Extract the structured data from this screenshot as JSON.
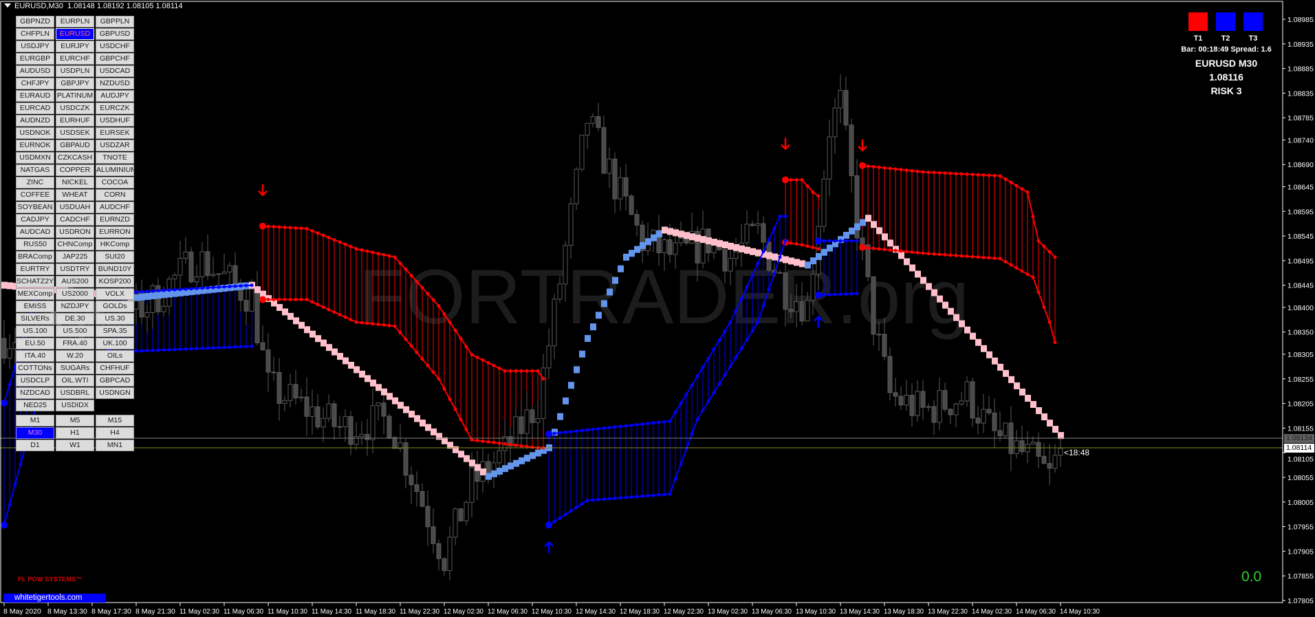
{
  "header": {
    "symbol_tf": "EURUSD,M30",
    "ohlc": "1.08148 1.08192 1.08105 1.08114"
  },
  "symbols": {
    "selected": "EURUSD",
    "rows": [
      [
        "GBPNZD",
        "EURPLN",
        "GBPPLN"
      ],
      [
        "CHFPLN",
        "EURUSD",
        "GBPUSD"
      ],
      [
        "USDJPY",
        "EURJPY",
        "USDCHF"
      ],
      [
        "EURGBP",
        "EURCHF",
        "GBPCHF"
      ],
      [
        "AUDUSD",
        "USDPLN",
        "USDCAD"
      ],
      [
        "CHFJPY",
        "GBPJPY",
        "NZDUSD"
      ],
      [
        "EURAUD",
        "PLATINUM",
        "AUDJPY"
      ],
      [
        "EURCAD",
        "USDCZK",
        "EURCZK"
      ],
      [
        "AUDNZD",
        "EURHUF",
        "USDHUF"
      ],
      [
        "USDNOK",
        "USDSEK",
        "EURSEK"
      ],
      [
        "EURNOK",
        "GBPAUD",
        "USDZAR"
      ],
      [
        "USDMXN",
        "CZKCASH",
        "TNOTE"
      ],
      [
        "NATGAS",
        "COPPER",
        "ALUMINIUM"
      ],
      [
        "ZINC",
        "NICKEL",
        "COCOA"
      ],
      [
        "COFFEE",
        "WHEAT",
        "CORN"
      ],
      [
        "SOYBEAN",
        "USDUAH",
        "AUDCHF"
      ],
      [
        "CADJPY",
        "CADCHF",
        "EURNZD"
      ],
      [
        "AUDCAD",
        "USDRON",
        "EURRON"
      ],
      [
        "RUS50",
        "CHNComp",
        "HKComp"
      ],
      [
        "BRAComp",
        "JAP225",
        "SUI20"
      ],
      [
        "EURTRY",
        "USDTRY",
        "BUND10Y"
      ],
      [
        "SCHATZ2Y",
        "AUS200",
        "KOSP200"
      ],
      [
        "MEXComp",
        "US2000",
        "VOLX"
      ],
      [
        "EMISS",
        "NZDJPY",
        "GOLDs"
      ],
      [
        "SILVERs",
        "DE.30",
        "US.30"
      ],
      [
        "US.100",
        "US.500",
        "SPA.35"
      ],
      [
        "EU.50",
        "FRA.40",
        "UK.100"
      ],
      [
        "ITA.40",
        "W.20",
        "OILs"
      ],
      [
        "COTTONs",
        "SUGARs",
        "CHFHUF"
      ],
      [
        "USDCLP",
        "OIL.WTI",
        "GBPCAD"
      ],
      [
        "NZDCAD",
        "USDBRL",
        "USDNGN"
      ],
      [
        "NED25",
        "USDIDX"
      ]
    ]
  },
  "timeframes": {
    "selected": "M30",
    "rows": [
      [
        "M1",
        "M5",
        "M15"
      ],
      [
        "M30",
        "H1",
        "H4"
      ],
      [
        "D1",
        "W1",
        "MN1"
      ]
    ]
  },
  "panel": {
    "squares": [
      {
        "label": "T1",
        "color": "#ff0000"
      },
      {
        "label": "T2",
        "color": "#0000ff"
      },
      {
        "label": "T3",
        "color": "#0000ff"
      }
    ],
    "bar_spread": "Bar: 00:18:49 Spread: 1.6",
    "symbol_tf": "EURUSD M30",
    "price": "1.08116",
    "risk": "RISK 3"
  },
  "watermark": "FORTRADER.org",
  "brand": "FL POW SYSTEMS™",
  "site_label": "whitetigertools.com",
  "counter": "0.0",
  "bar_timer": "<18:48",
  "price_lines": {
    "bid": "1.08134",
    "last": "1.08114"
  },
  "chart_data": {
    "type": "candlestick",
    "y_ticks": [
      "1.08985",
      "1.08935",
      "1.08885",
      "1.08835",
      "1.08785",
      "1.08740",
      "1.08690",
      "1.08645",
      "1.08595",
      "1.08545",
      "1.08495",
      "1.08445",
      "1.08400",
      "1.08350",
      "1.08305",
      "1.08255",
      "1.08205",
      "1.08155",
      "1.08105",
      "1.08055",
      "1.08005",
      "1.07955",
      "1.07905",
      "1.07855",
      "1.07805"
    ],
    "x_ticks": [
      "8 May 2020",
      "8 May 13:30",
      "8 May 17:30",
      "8 May 21:30",
      "11 May 02:30",
      "11 May 06:30",
      "11 May 10:30",
      "11 May 14:30",
      "11 May 18:30",
      "11 May 22:30",
      "12 May 02:30",
      "12 May 06:30",
      "12 May 10:30",
      "12 May 14:30",
      "12 May 18:30",
      "12 May 22:30",
      "13 May 02:30",
      "13 May 06:30",
      "13 May 10:30",
      "13 May 14:30",
      "13 May 18:30",
      "13 May 22:30",
      "14 May 02:30",
      "14 May 06:30",
      "14 May 10:30"
    ],
    "price_path": [
      [
        "8 May 09:30",
        1.08337
      ],
      [
        "8 May 22:30",
        1.08403
      ],
      [
        "11 May 04:00",
        1.08502
      ],
      [
        "11 May 09:00",
        1.0842
      ],
      [
        "11 May 10:30",
        1.08238
      ],
      [
        "11 May 17:00",
        1.08156
      ],
      [
        "11 May 21:30",
        1.08173
      ],
      [
        "12 May 02:30",
        1.07892
      ],
      [
        "12 May 05:00",
        1.08041
      ],
      [
        "12 May 08:00",
        1.08107
      ],
      [
        "12 May 11:00",
        1.08206
      ],
      [
        "12 May 12:30",
        1.08387
      ],
      [
        "12 May 15:30",
        1.08782
      ],
      [
        "12 May 18:00",
        1.0865
      ],
      [
        "12 May 20:30",
        1.08535
      ],
      [
        "12 May 23:30",
        1.08502
      ],
      [
        "13 May 02:30",
        1.08535
      ],
      [
        "13 May 04:30",
        1.08502
      ],
      [
        "13 May 07:00",
        1.08552
      ],
      [
        "13 May 09:30",
        1.08436
      ],
      [
        "13 May 11:30",
        1.08403
      ],
      [
        "13 May 13:30",
        1.08766
      ],
      [
        "13 May 14:30",
        1.08815
      ],
      [
        "13 May 16:00",
        1.08568
      ],
      [
        "13 May 17:30",
        1.0837
      ],
      [
        "13 May 19:00",
        1.08222
      ],
      [
        "13 May 22:00",
        1.08189
      ],
      [
        "14 May 02:00",
        1.08222
      ],
      [
        "14 May 04:30",
        1.0814
      ],
      [
        "14 May 08:00",
        1.0809
      ],
      [
        "14 May 09:30",
        1.08057
      ],
      [
        "14 May 10:30",
        1.08114
      ]
    ],
    "trend_line": [
      [
        "8 May 09:30",
        1.08445,
        "#ffc0cb"
      ],
      [
        "8 May 21:30",
        1.0842,
        "#6495ed"
      ],
      [
        "11 May 09:00",
        1.08445,
        "#ffc0cb"
      ],
      [
        "12 May 06:30",
        1.08057,
        "#6495ed"
      ],
      [
        "12 May 12:00",
        1.08115,
        "#6495ed"
      ],
      [
        "12 May 15:30",
        1.08337,
        "#6495ed"
      ],
      [
        "12 May 19:00",
        1.08502,
        "#6495ed"
      ],
      [
        "12 May 22:30",
        1.08557,
        "#ffc0cb"
      ],
      [
        "13 May 11:30",
        1.08486,
        "#6495ed"
      ],
      [
        "13 May 17:00",
        1.08581,
        "#ffc0cb"
      ],
      [
        "14 May 10:30",
        1.0814,
        "#ffc0cb"
      ]
    ],
    "bands": [
      {
        "color": "#ff0000",
        "top": [
          [
            "11 May 10:00",
            1.08565
          ],
          [
            "11 May 14:00",
            1.0856
          ],
          [
            "11 May 18:30",
            1.08519
          ],
          [
            "11 May 22:00",
            1.08502
          ],
          [
            "12 May 02:00",
            1.08403
          ],
          [
            "12 May 05:00",
            1.08304
          ],
          [
            "12 May 08:00",
            1.08271
          ],
          [
            "12 May 11:00",
            1.08271
          ],
          [
            "12 May 11:30",
            1.08255
          ]
        ],
        "bottom": [
          [
            "11 May 10:00",
            1.08416
          ],
          [
            "11 May 14:00",
            1.08416
          ],
          [
            "11 May 18:30",
            1.0837
          ],
          [
            "11 May 22:00",
            1.08362
          ],
          [
            "12 May 02:00",
            1.08255
          ],
          [
            "12 May 05:00",
            1.08131
          ],
          [
            "12 May 08:00",
            1.08123
          ],
          [
            "12 May 11:00",
            1.08115
          ],
          [
            "12 May 11:30",
            1.08115
          ]
        ]
      },
      {
        "color": "#ff0000",
        "top": [
          [
            "13 May 09:30",
            1.08659
          ],
          [
            "13 May 11:00",
            1.08659
          ],
          [
            "13 May 12:00",
            1.08634
          ],
          [
            "13 May 12:30",
            1.08626
          ]
        ],
        "bottom": [
          [
            "13 May 09:30",
            1.08532
          ],
          [
            "13 May 11:00",
            1.08527
          ],
          [
            "13 May 12:30",
            1.08519
          ]
        ]
      },
      {
        "color": "#ff0000",
        "top": [
          [
            "13 May 16:30",
            1.08688
          ],
          [
            "13 May 22:00",
            1.08675
          ],
          [
            "14 May 05:00",
            1.08667
          ],
          [
            "14 May 07:30",
            1.08634
          ],
          [
            "14 May 08:30",
            1.08535
          ],
          [
            "14 May 10:00",
            1.08502
          ]
        ],
        "bottom": [
          [
            "13 May 16:30",
            1.08522
          ],
          [
            "13 May 22:00",
            1.0851
          ],
          [
            "14 May 05:00",
            1.08499
          ],
          [
            "14 May 08:00",
            1.08461
          ],
          [
            "14 May 09:30",
            1.0837
          ],
          [
            "14 May 10:00",
            1.08329
          ]
        ]
      },
      {
        "color": "#0000ff",
        "top": [
          [
            "8 May 19:00",
            1.08428
          ],
          [
            "11 May 09:00",
            1.08445
          ]
        ],
        "bottom": [
          [
            "8 May 19:00",
            1.08309
          ],
          [
            "11 May 09:00",
            1.08321
          ]
        ]
      },
      {
        "color": "#0000ff",
        "top": [
          [
            "12 May 12:00",
            1.08143
          ],
          [
            "12 May 23:00",
            1.08169
          ],
          [
            "13 May 04:30",
            1.0837
          ],
          [
            "13 May 09:00",
            1.08585
          ]
        ],
        "bottom": [
          [
            "12 May 12:00",
            1.07958
          ],
          [
            "12 May 15:30",
            1.08008
          ],
          [
            "12 May 23:00",
            1.08021
          ],
          [
            "13 May 01:30",
            1.08173
          ],
          [
            "13 May 07:00",
            1.0837
          ],
          [
            "13 May 09:30",
            1.08535
          ]
        ]
      },
      {
        "color": "#0000ff",
        "top": [
          [
            "13 May 12:30",
            1.08535
          ],
          [
            "13 May 16:00",
            1.08535
          ]
        ],
        "bottom": [
          [
            "13 May 12:30",
            1.08425
          ],
          [
            "13 May 16:00",
            1.08428
          ]
        ]
      },
      {
        "color": "#0000ff",
        "top": [
          [
            "8 May 09:30",
            1.08206
          ],
          [
            "8 May 12:30",
            1.0843
          ]
        ],
        "bottom": [
          [
            "8 May 09:30",
            1.07958
          ],
          [
            "8 May 12:30",
            1.08206
          ]
        ]
      }
    ],
    "signals": [
      {
        "time": "11 May 10:00",
        "price": 1.08639,
        "dir": "down"
      },
      {
        "time": "13 May 09:30",
        "price": 1.08733,
        "dir": "down"
      },
      {
        "time": "13 May 16:30",
        "price": 1.0873,
        "dir": "down"
      },
      {
        "time": "12 May 12:00",
        "price": 1.07912,
        "dir": "up"
      },
      {
        "time": "13 May 12:30",
        "price": 1.0837,
        "dir": "up"
      }
    ]
  }
}
